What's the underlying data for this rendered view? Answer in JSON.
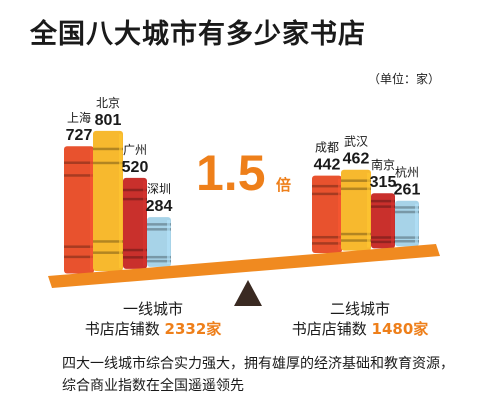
{
  "title": "全国八大城市有多少家书店",
  "unit": "（单位：家）",
  "ratio": {
    "value": "1.5",
    "suffix": "倍"
  },
  "groups": [
    {
      "name": "一线城市",
      "caption": "书店店铺数",
      "total": "2332家"
    },
    {
      "name": "二线城市",
      "caption": "书店店铺数",
      "total": "1480家"
    }
  ],
  "footnote": "四大一线城市综合实力强大，拥有雄厚的经济基础和教育资源，综合商业指数在全国遥遥领先",
  "colors": {
    "orange_red": "#e8522e",
    "yellow": "#f7b92e",
    "red": "#c9302c",
    "light_blue": "#a7d3e8",
    "beam": "#f08a20",
    "accent": "#ee7f1a"
  },
  "chart_data": {
    "type": "bar",
    "title": "全国八大城市有多少家书店",
    "unit": "家",
    "groups": [
      {
        "name": "一线城市",
        "total": 2332,
        "categories": [
          "上海",
          "北京",
          "广州",
          "深圳"
        ],
        "values": [
          727,
          801,
          520,
          284
        ]
      },
      {
        "name": "二线城市",
        "total": 1480,
        "categories": [
          "成都",
          "武汉",
          "南京",
          "杭州"
        ],
        "values": [
          442,
          462,
          315,
          261
        ]
      }
    ]
  }
}
